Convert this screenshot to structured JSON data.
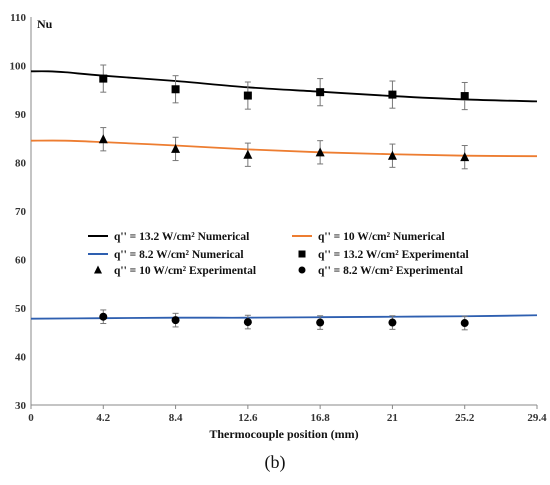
{
  "chart_data": {
    "type": "line",
    "ylabel": "Nu",
    "xlabel": "Thermocouple position (mm)",
    "xlim": [
      0,
      29.4
    ],
    "ylim": [
      30,
      110
    ],
    "x_ticks": [
      0,
      4.2,
      8.4,
      12.6,
      16.8,
      21,
      25.2,
      29.4
    ],
    "x_tick_labels": [
      "0",
      "4.2",
      "8.4",
      "12.6",
      "16.8",
      "21",
      "25.2",
      "29.4"
    ],
    "y_ticks": [
      30,
      40,
      50,
      60,
      70,
      80,
      90,
      100,
      110
    ],
    "grid": false,
    "legend_placement": "center-left",
    "lines": [
      {
        "name": "q'' = 13.2 W/cm² Numerical",
        "color": "#000000",
        "x": [
          0,
          1,
          2,
          4.2,
          8.4,
          12.6,
          16.8,
          21,
          25.2,
          29.4
        ],
        "y": [
          98.8,
          98.8,
          98.6,
          97.9,
          96.8,
          95.5,
          94.6,
          93.7,
          93.0,
          92.6
        ]
      },
      {
        "name": "q'' = 10 W/cm² Numerical",
        "color": "#ed7d31",
        "x": [
          0,
          2,
          4.2,
          8.4,
          12.6,
          16.8,
          21,
          25.2,
          29.4
        ],
        "y": [
          84.5,
          84.5,
          84.2,
          83.5,
          82.7,
          82.1,
          81.7,
          81.4,
          81.3
        ]
      },
      {
        "name": "q'' = 8.2 W/cm² Numerical",
        "color": "#2e5fb0",
        "x": [
          0,
          4.2,
          8.4,
          12.6,
          16.8,
          21,
          25.2,
          29.4
        ],
        "y": [
          47.8,
          47.9,
          48.0,
          48.0,
          48.1,
          48.2,
          48.3,
          48.5
        ]
      }
    ],
    "points": [
      {
        "name": "q'' = 13.2 W/cm² Experimental",
        "marker": "square",
        "color": "#000000",
        "x": [
          4.2,
          8.4,
          12.6,
          16.8,
          21,
          25.2
        ],
        "y": [
          97.3,
          95.1,
          93.8,
          94.5,
          94.0,
          93.7
        ],
        "err": [
          2.8,
          2.8,
          2.8,
          2.8,
          2.8,
          2.8
        ]
      },
      {
        "name": "q'' = 10 W/cm² Experimental",
        "marker": "triangle",
        "color": "#000000",
        "x": [
          4.2,
          8.4,
          12.6,
          16.8,
          21,
          25.2
        ],
        "y": [
          84.8,
          82.8,
          81.6,
          82.1,
          81.4,
          81.1
        ],
        "err": [
          2.4,
          2.4,
          2.4,
          2.4,
          2.4,
          2.4
        ]
      },
      {
        "name": "q'' = 8.2 W/cm² Experimental",
        "marker": "circle",
        "color": "#000000",
        "x": [
          4.2,
          8.4,
          12.6,
          16.8,
          21,
          25.2
        ],
        "y": [
          48.2,
          47.5,
          47.1,
          47.0,
          47.0,
          46.9
        ],
        "err": [
          1.4,
          1.4,
          1.4,
          1.4,
          1.4,
          1.4
        ]
      }
    ],
    "legend": [
      {
        "label": "q'' = 13.2 W/cm² Numerical",
        "kind": "line",
        "color": "#000000"
      },
      {
        "label": "q'' = 10 W/cm² Numerical",
        "kind": "line",
        "color": "#ed7d31"
      },
      {
        "label": "q'' = 8.2 W/cm² Numerical",
        "kind": "line",
        "color": "#2e5fb0"
      },
      {
        "label": "q'' = 13.2 W/cm² Experimental",
        "kind": "square",
        "color": "#000000"
      },
      {
        "label": "q'' = 10 W/cm² Experimental",
        "kind": "triangle",
        "color": "#000000"
      },
      {
        "label": "q'' = 8.2 W/cm² Experimental",
        "kind": "circle",
        "color": "#000000"
      }
    ]
  },
  "caption": "(b)"
}
